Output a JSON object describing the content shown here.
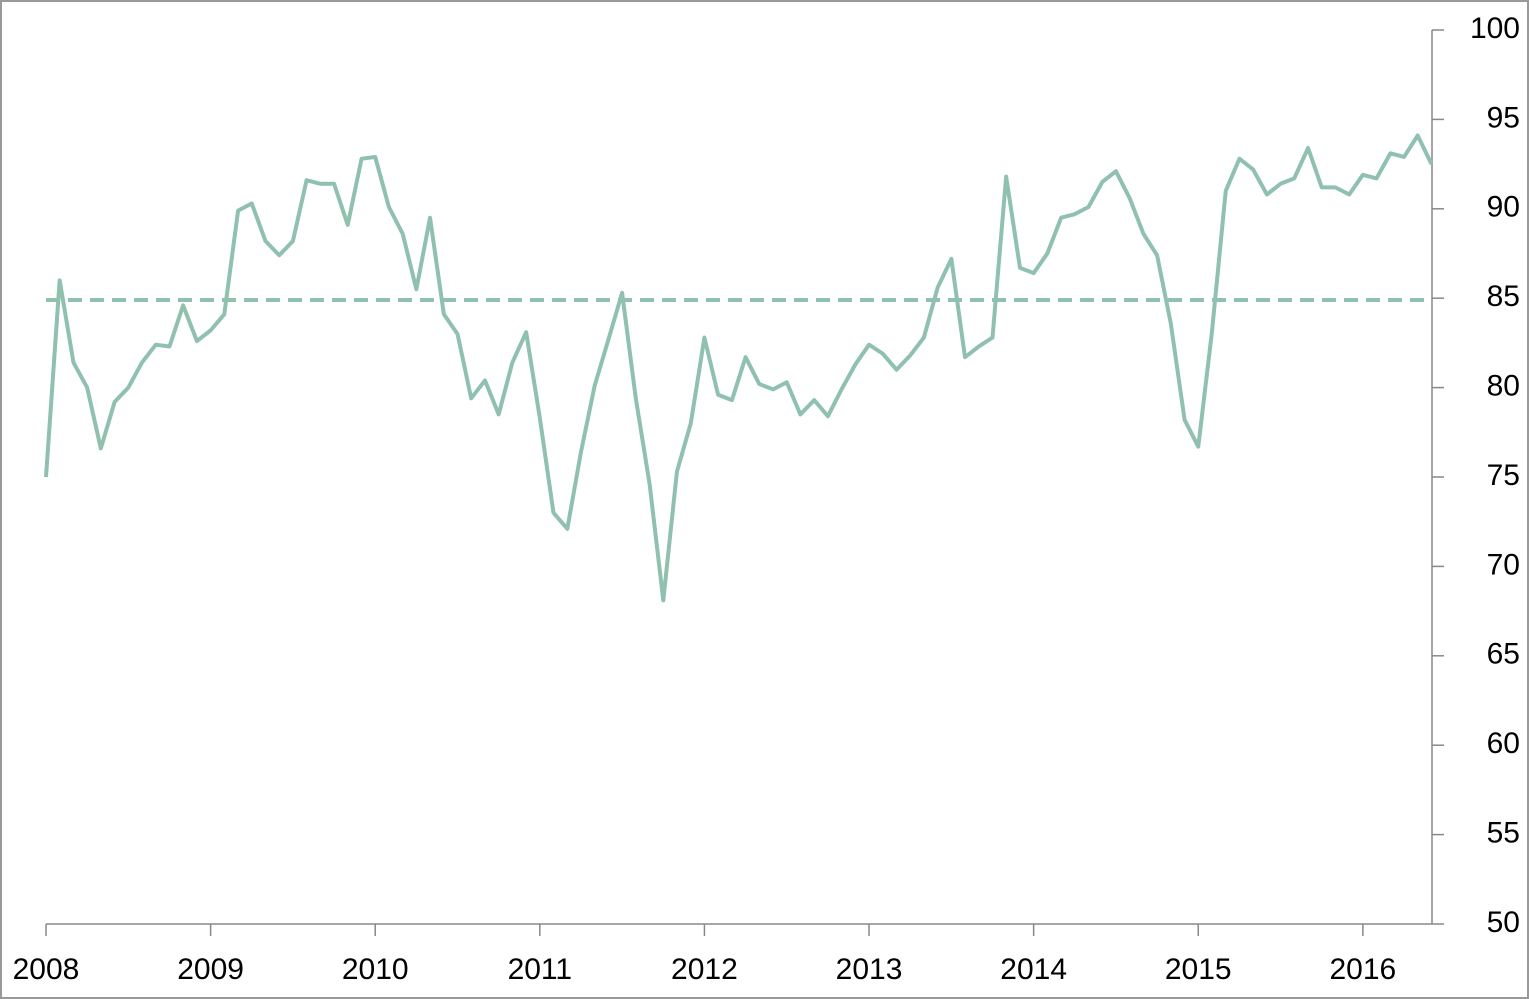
{
  "chart_data": {
    "type": "line",
    "x": [
      2008,
      2008.083,
      2008.167,
      2008.25,
      2008.333,
      2008.417,
      2008.5,
      2008.583,
      2008.667,
      2008.75,
      2008.833,
      2008.917,
      2009,
      2009.083,
      2009.167,
      2009.25,
      2009.333,
      2009.417,
      2009.5,
      2009.583,
      2009.667,
      2009.75,
      2009.833,
      2009.917,
      2010,
      2010.083,
      2010.167,
      2010.25,
      2010.333,
      2010.417,
      2010.5,
      2010.583,
      2010.667,
      2010.75,
      2010.833,
      2010.917,
      2011,
      2011.083,
      2011.167,
      2011.25,
      2011.333,
      2011.417,
      2011.5,
      2011.583,
      2011.667,
      2011.75,
      2011.833,
      2011.917,
      2012,
      2012.083,
      2012.167,
      2012.25,
      2012.333,
      2012.417,
      2012.5,
      2012.583,
      2012.667,
      2012.75,
      2012.833,
      2012.917,
      2013,
      2013.083,
      2013.167,
      2013.25,
      2013.333,
      2013.417,
      2013.5,
      2013.583,
      2013.667,
      2013.75,
      2013.833,
      2013.917,
      2014,
      2014.083,
      2014.167,
      2014.25,
      2014.333,
      2014.417,
      2014.5,
      2014.583,
      2014.667,
      2014.75,
      2014.833,
      2014.917,
      2015,
      2015.083,
      2015.167,
      2015.25,
      2015.333,
      2015.417,
      2015.5,
      2015.583,
      2015.667,
      2015.75,
      2015.833,
      2015.917,
      2016,
      2016.083,
      2016.167,
      2016.25,
      2016.333,
      2016.417
    ],
    "series": [
      {
        "color": "#8fc1ae",
        "values": [
          75,
          86,
          81.4,
          80,
          76.6,
          79.2,
          80,
          81.4,
          82.4,
          82.3,
          84.6,
          82.6,
          83.2,
          84.1,
          89.9,
          90.3,
          88.2,
          87.4,
          88.2,
          91.6,
          91.4,
          91.4,
          89.1,
          92.8,
          92.9,
          90.1,
          88.6,
          85.5,
          89.5,
          84.1,
          83,
          79.4,
          80.4,
          78.5,
          81.4,
          83.1,
          78.3,
          73,
          72.1,
          76.4,
          80.1,
          82.7,
          85.3,
          79.4,
          74.6,
          68.1,
          75.3,
          78,
          82.8,
          79.6,
          79.3,
          81.7,
          80.2,
          79.9,
          80.3,
          78.5,
          79.3,
          78.4,
          79.9,
          81.3,
          82.4,
          81.9,
          81,
          81.8,
          82.8,
          85.6,
          87.2,
          81.7,
          82.3,
          82.8,
          91.8,
          86.7,
          86.4,
          87.5,
          89.5,
          89.7,
          90.1,
          91.5,
          92.1,
          90.6,
          88.6,
          87.4,
          83.6,
          78.2,
          76.7,
          83.1,
          91,
          92.8,
          92.2,
          90.8,
          91.4,
          91.7,
          93.4,
          91.2,
          91.2,
          90.8,
          91.9,
          91.7,
          93.1,
          92.9,
          94.1,
          92.5
        ]
      }
    ],
    "reference_line": {
      "value": 84.9,
      "color": "#8fc1ae",
      "dashed": true
    },
    "xlim": [
      2008,
      2016.42
    ],
    "xticks": [
      2008,
      2009,
      2010,
      2011,
      2012,
      2013,
      2014,
      2015,
      2016
    ],
    "ylim": [
      50,
      100
    ],
    "yticks": [
      50,
      55,
      60,
      65,
      70,
      75,
      80,
      85,
      90,
      95,
      100
    ],
    "y_axis_side": "right",
    "grid": false
  }
}
